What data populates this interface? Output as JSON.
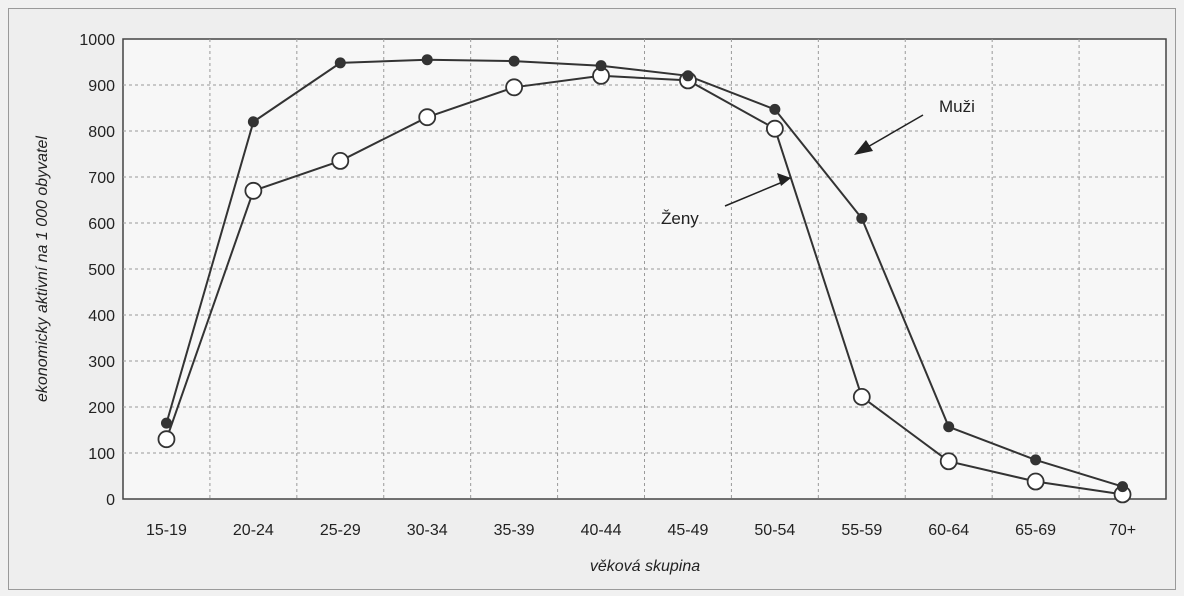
{
  "chart_data": {
    "type": "line",
    "categories": [
      "15-19",
      "20-24",
      "25-29",
      "30-34",
      "35-39",
      "40-44",
      "45-49",
      "50-54",
      "55-59",
      "60-64",
      "65-69",
      "70+"
    ],
    "series": [
      {
        "name": "Muži",
        "marker": "filled",
        "color": "#333333",
        "values": [
          165,
          820,
          948,
          955,
          952,
          942,
          920,
          847,
          610,
          157,
          85,
          27
        ]
      },
      {
        "name": "Ženy",
        "marker": "hollow",
        "color": "#333333",
        "values": [
          130,
          670,
          735,
          830,
          895,
          920,
          910,
          805,
          222,
          82,
          38,
          10
        ]
      }
    ],
    "xlabel": "věková skupina",
    "ylabel": "ekonomicky aktivní na 1 000 obyvatel",
    "ylim": [
      0,
      1000
    ],
    "yticks": [
      0,
      100,
      200,
      300,
      400,
      500,
      600,
      700,
      800,
      900,
      1000
    ],
    "grid": true,
    "annotations": [
      {
        "text": "Muži",
        "points_to": "Muži"
      },
      {
        "text": "Ženy",
        "points_to": "Ženy"
      }
    ]
  }
}
